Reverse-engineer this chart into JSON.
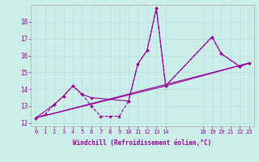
{
  "background_color": "#cceee8",
  "line_color": "#990099",
  "xlabel": "Windchill (Refroidissement éolien,°C)",
  "xlim": [
    -0.5,
    23.5
  ],
  "ylim": [
    11.8,
    19.0
  ],
  "yticks": [
    12,
    13,
    14,
    15,
    16,
    17,
    18
  ],
  "xticks": [
    0,
    1,
    2,
    3,
    4,
    5,
    6,
    7,
    8,
    9,
    10,
    11,
    12,
    13,
    14,
    18,
    19,
    20,
    21,
    22,
    23
  ],
  "line1_x": [
    0,
    1,
    2,
    3,
    4,
    5,
    6,
    7,
    8,
    9,
    10,
    11,
    12,
    13,
    14,
    19,
    20,
    22,
    23
  ],
  "line1_y": [
    12.3,
    12.5,
    13.1,
    13.6,
    14.2,
    13.7,
    13.0,
    12.4,
    12.4,
    12.4,
    13.3,
    15.5,
    16.3,
    18.8,
    14.2,
    17.1,
    16.1,
    15.35,
    15.55
  ],
  "line2_x": [
    0,
    2,
    3,
    4,
    5,
    6,
    10,
    11,
    12,
    13,
    14,
    19,
    20,
    22,
    23
  ],
  "line2_y": [
    12.3,
    13.1,
    13.6,
    14.2,
    13.7,
    13.5,
    13.3,
    15.5,
    16.3,
    18.8,
    14.2,
    17.1,
    16.1,
    15.35,
    15.55
  ],
  "line3_x": [
    0,
    23
  ],
  "line3_y": [
    12.3,
    15.55
  ],
  "line4_x": [
    0,
    14,
    23
  ],
  "line4_y": [
    12.3,
    14.2,
    15.55
  ]
}
